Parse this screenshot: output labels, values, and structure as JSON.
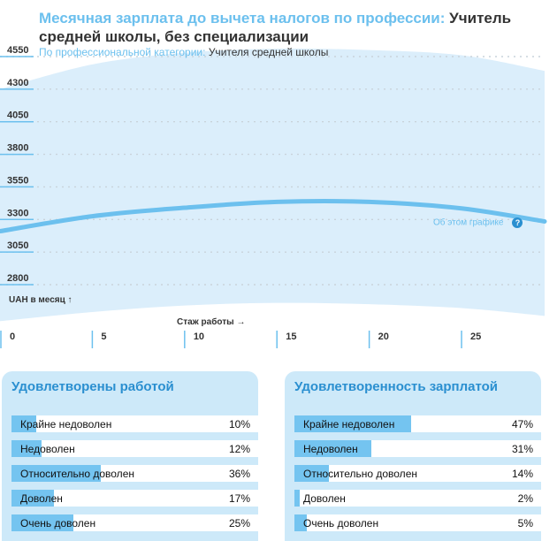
{
  "chart_data": {
    "type": "line",
    "title_prefix": "Месячная зарплата до вычета налогов по профессии:",
    "title_value": "Учитель средней школы, без специализации",
    "subtitle_prefix": "По профессиональной категории:",
    "subtitle_value": "Учителя средней школы",
    "ylabel": "UAH в месяц ↑",
    "xlabel": "Стаж работы →",
    "yticks": [
      4550,
      4300,
      4050,
      3800,
      3550,
      3300,
      3050,
      2800
    ],
    "ylim": [
      2700,
      4600
    ],
    "xticks": [
      0,
      5,
      10,
      15,
      20,
      25
    ],
    "xlim": [
      0,
      29.5
    ],
    "grid": true,
    "series": [
      {
        "x": [
          0,
          5,
          10,
          15,
          20,
          25,
          29.5
        ],
        "y": [
          3210,
          3325,
          3390,
          3435,
          3435,
          3385,
          3285
        ]
      }
    ],
    "band_upper": {
      "x": [
        0,
        5,
        10,
        15,
        20,
        25,
        29.5
      ],
      "y": [
        4300,
        4490,
        4580,
        4610,
        4600,
        4560,
        4440
      ]
    },
    "band_lower": {
      "x": [
        0,
        5,
        10,
        15,
        20,
        25,
        29.5
      ],
      "y": [
        2520,
        2590,
        2640,
        2660,
        2650,
        2620,
        2560
      ]
    },
    "about_link": "Об этом графике"
  },
  "satisfaction_job": {
    "title": "Удовлетворены работой",
    "items": [
      {
        "label": "Крайне недоволен",
        "percent": 10,
        "value": "10%"
      },
      {
        "label": "Недоволен",
        "percent": 12,
        "value": "12%"
      },
      {
        "label": "Относительно доволен",
        "percent": 36,
        "value": "36%"
      },
      {
        "label": "Доволен",
        "percent": 17,
        "value": "17%"
      },
      {
        "label": "Очень доволен",
        "percent": 25,
        "value": "25%"
      }
    ]
  },
  "satisfaction_salary": {
    "title": "Удовлетворенность зарплатой",
    "items": [
      {
        "label": "Крайне недоволен",
        "percent": 47,
        "value": "47%"
      },
      {
        "label": "Недоволен",
        "percent": 31,
        "value": "31%"
      },
      {
        "label": "Относительно доволен",
        "percent": 14,
        "value": "14%"
      },
      {
        "label": "Доволен",
        "percent": 2,
        "value": "2%"
      },
      {
        "label": "Очень доволен",
        "percent": 5,
        "value": "5%"
      }
    ]
  },
  "colors": {
    "band": "#dbeefb",
    "line": "#6cc0ee",
    "accent": "#2a8fd0",
    "bar": "#74c4f0",
    "panel": "#cde9f9"
  }
}
